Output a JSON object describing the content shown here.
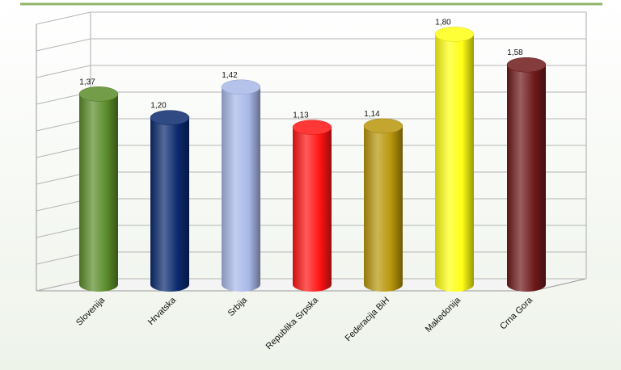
{
  "chart_data": {
    "type": "bar",
    "categories": [
      "Slovenija",
      "Hrvatska",
      "Srbija",
      "Republika Srpska",
      "Federacija BiH",
      "Makedonija",
      "Crna Gora"
    ],
    "values": [
      1.37,
      1.2,
      1.42,
      1.13,
      1.14,
      1.8,
      1.58
    ],
    "value_labels": [
      "1,37",
      "1,20",
      "1,42",
      "1,13",
      "1,14",
      "1,80",
      "1,58"
    ],
    "colors": [
      "#5b8c2a",
      "#0b2a6e",
      "#a8b8e8",
      "#ff1414",
      "#b8960c",
      "#ffff14",
      "#6e1a1a"
    ],
    "ylim": [
      0,
      2
    ],
    "yticks": [
      0,
      0.2,
      0.4,
      0.6,
      0.8,
      1,
      1.2,
      1.4,
      1.6,
      1.8,
      2
    ],
    "grid": true
  }
}
